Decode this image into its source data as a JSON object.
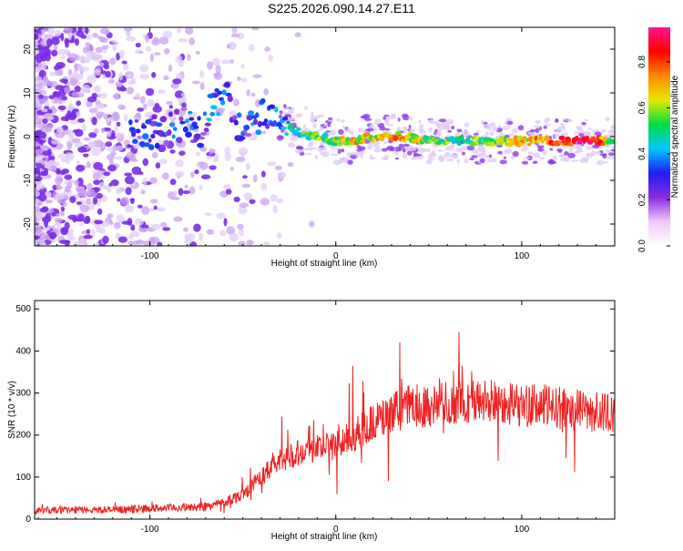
{
  "title": "S225.2026.090.14.27.E11",
  "colors": {
    "snr_line": "#ee2222",
    "spectro_base": "#7a2ee8",
    "frame": "#000000"
  },
  "chart_data": [
    {
      "type": "heatmap",
      "name": "spectrogram",
      "xlabel": "Height of straight line (km)",
      "ylabel": "Frequency (Hz)",
      "xlim": [
        -162,
        150
      ],
      "ylim": [
        -25,
        25
      ],
      "x_ticks": [
        -100,
        0,
        100
      ],
      "y_ticks": [
        -20,
        -10,
        0,
        10,
        20
      ],
      "ridge": {
        "x": [
          -110,
          -100,
          -90,
          -80,
          -72,
          -66,
          -60,
          -55,
          -50,
          -45,
          -40,
          -35,
          -30,
          -25,
          -20,
          -10,
          0,
          10,
          20,
          30,
          40,
          50,
          60,
          70,
          80,
          90,
          100,
          110,
          120,
          130,
          140,
          148
        ],
        "frequency_hz": [
          1,
          1,
          2,
          3,
          1,
          7,
          10,
          5,
          0,
          3,
          5,
          6,
          4,
          2,
          1,
          0,
          -1,
          -1,
          0,
          0,
          0,
          -1,
          -1,
          -1,
          -1,
          -1,
          -1,
          -1,
          -1,
          -1,
          -1,
          -1
        ],
        "normalized_amplitude": [
          0.25,
          0.3,
          0.3,
          0.3,
          0.3,
          0.4,
          0.3,
          0.3,
          0.3,
          0.3,
          0.3,
          0.35,
          0.4,
          0.45,
          0.5,
          0.55,
          0.6,
          0.7,
          0.65,
          0.75,
          0.7,
          0.6,
          0.55,
          0.5,
          0.6,
          0.65,
          0.7,
          0.75,
          0.8,
          0.9,
          0.95,
          0.5
        ]
      },
      "colorbar": {
        "label": "Normalized spectral amplitude",
        "range": [
          0.0,
          0.95
        ],
        "ticks": [
          0.0,
          0.2,
          0.4,
          0.6,
          0.8
        ],
        "colors": [
          "#ffffff",
          "#f0c8f8",
          "#8a2be2",
          "#1e1ef0",
          "#00c8ff",
          "#00dd44",
          "#e8e800",
          "#ff8800",
          "#ff0000",
          "#ff1493"
        ]
      }
    },
    {
      "type": "line",
      "name": "snr",
      "xlabel": "Height of straight line (km)",
      "ylabel": "SNR (10 * v/v)",
      "xlim": [
        -162,
        150
      ],
      "ylim": [
        0,
        520
      ],
      "x_ticks": [
        -100,
        0,
        100
      ],
      "y_ticks": [
        0,
        100,
        200,
        300,
        400,
        500
      ],
      "series": [
        {
          "name": "SNR",
          "x": [
            -162,
            -140,
            -120,
            -100,
            -80,
            -70,
            -60,
            -50,
            -40,
            -30,
            -20,
            -10,
            0,
            10,
            20,
            30,
            40,
            50,
            60,
            70,
            80,
            90,
            100,
            110,
            120,
            130,
            140,
            150
          ],
          "y": [
            20,
            22,
            22,
            25,
            28,
            30,
            40,
            60,
            100,
            140,
            160,
            170,
            175,
            200,
            230,
            250,
            270,
            270,
            275,
            280,
            280,
            280,
            270,
            270,
            265,
            260,
            255,
            250
          ]
        }
      ]
    }
  ]
}
